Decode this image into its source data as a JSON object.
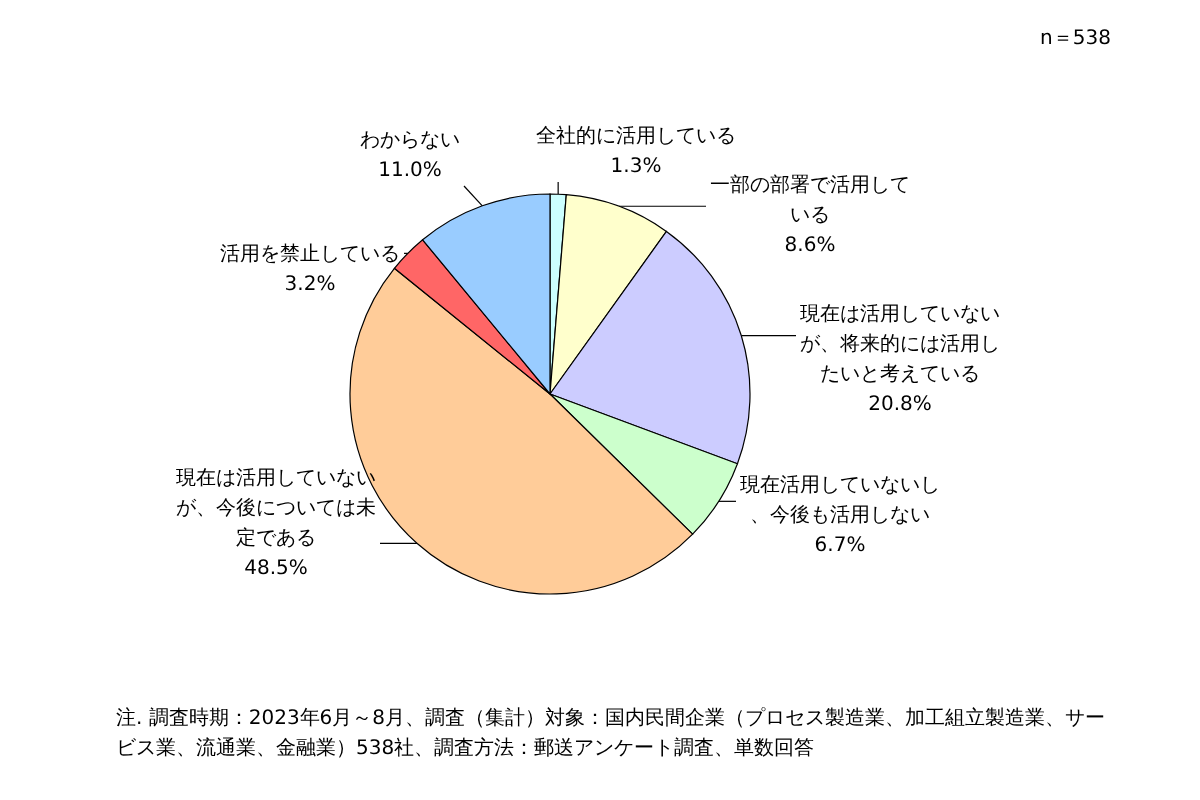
{
  "chart_data": {
    "type": "pie",
    "categories": [
      "全社的に活用している",
      "一部の部署で活用している",
      "現在は活用していないが、将来的には活用したいと考えている",
      "現在活用していないし、今後も活用しない",
      "現在は活用していないが、今後については未定である",
      "活用を禁止している",
      "わからない"
    ],
    "values": [
      1.3,
      8.6,
      20.8,
      6.7,
      48.5,
      3.2,
      11.0
    ],
    "value_labels": [
      "1.3%",
      "8.6%",
      "20.8%",
      "6.7%",
      "48.5%",
      "3.2%",
      "11.0%"
    ],
    "colors": [
      "#ccffff",
      "#ffffcc",
      "#ccccff",
      "#ccffcc",
      "#ffcc99",
      "#ff6666",
      "#99ccff"
    ],
    "annotations": [
      "n＝538",
      "注. 調査時期：2023年6月～8月、調査（集計）対象：国内民間企業（プロセス製造業、加工組立製造業、サービス業、流通業、金融業）538社、調査方法：郵送アンケート調査、単数回答"
    ]
  }
}
